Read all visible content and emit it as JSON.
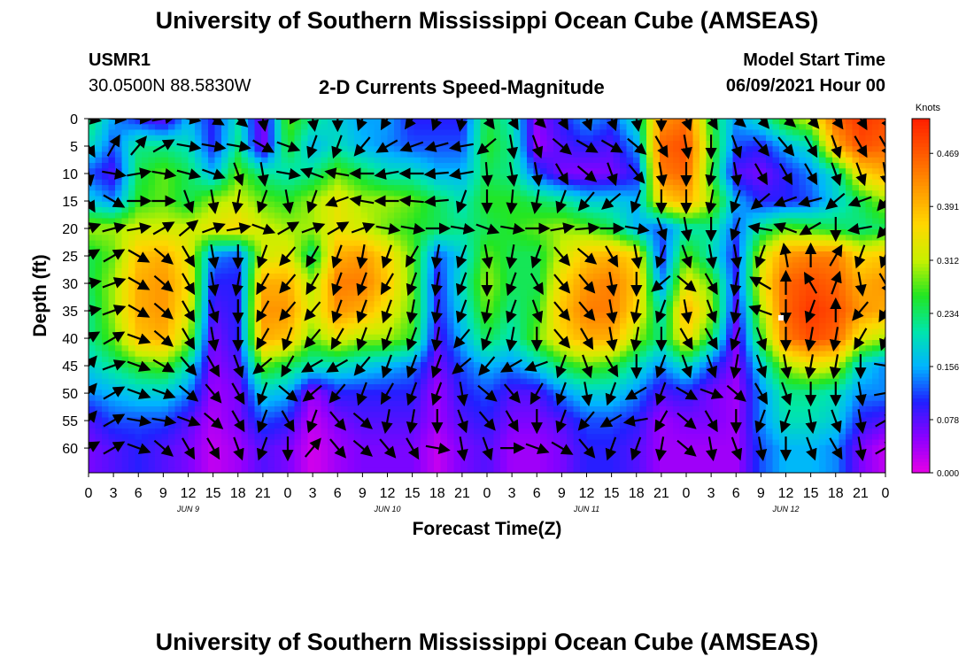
{
  "header": {
    "title": "University of Southern Mississippi Ocean Cube (AMSEAS)",
    "station": "USMR1",
    "coords": "30.0500N  88.5830W",
    "chart_title": "2-D Currents Speed-Magnitude",
    "model_start_label": "Model Start Time",
    "model_start_value": "06/09/2021 Hour 00"
  },
  "footer": {
    "title": "University of Southern Mississippi Ocean Cube (AMSEAS)"
  },
  "chart_data": {
    "type": "heatmap",
    "title": "2-D Currents Speed-Magnitude",
    "xlabel": "Forecast Time(Z)",
    "ylabel": "Depth (ft)",
    "x_tick_labels": [
      "0",
      "3",
      "6",
      "9",
      "12",
      "15",
      "18",
      "21",
      "0",
      "3",
      "6",
      "9",
      "12",
      "15",
      "18",
      "21",
      "0",
      "3",
      "6",
      "9",
      "12",
      "15",
      "18",
      "21",
      "0",
      "3",
      "6",
      "9",
      "12",
      "15",
      "18",
      "21",
      "0"
    ],
    "x_range_hours": [
      0,
      96
    ],
    "day_labels": [
      {
        "label": "JUN 9",
        "hour": 12
      },
      {
        "label": "JUN 10",
        "hour": 36
      },
      {
        "label": "JUN 11",
        "hour": 60
      },
      {
        "label": "JUN 12",
        "hour": 84
      }
    ],
    "y_ticks": [
      0,
      5,
      10,
      15,
      20,
      25,
      30,
      35,
      40,
      45,
      50,
      55,
      60
    ],
    "y_range_ft": [
      0,
      64.5
    ],
    "y_inverted": true,
    "colorbar": {
      "unit": "Knots",
      "ticks": [
        "0.000",
        "0.078",
        "0.156",
        "0.234",
        "0.312",
        "0.391",
        "0.469"
      ],
      "range": [
        0,
        0.52
      ],
      "colors": [
        "#e600e6",
        "#8a00ff",
        "#2020ff",
        "#00b4ff",
        "#00e6aa",
        "#22e622",
        "#c8f000",
        "#ffd700",
        "#ff9a00",
        "#ff5a00",
        "#ff1e00"
      ]
    },
    "hours": [
      0,
      3,
      6,
      9,
      12,
      15,
      18,
      21,
      24,
      27,
      30,
      33,
      36,
      39,
      42,
      45,
      48,
      51,
      54,
      57,
      60,
      63,
      66,
      69,
      72,
      75,
      78,
      81,
      84,
      87,
      90,
      93,
      96
    ],
    "depths_ft": [
      0,
      5,
      10,
      15,
      20,
      25,
      30,
      35,
      40,
      45,
      50,
      55,
      60,
      64
    ],
    "speed_knots": [
      [
        0.24,
        0.15,
        0.1,
        0.06,
        0.16,
        0.1,
        0.2,
        0.05,
        0.28,
        0.22,
        0.18,
        0.15,
        0.15,
        0.1,
        0.1,
        0.1,
        0.25,
        0.2,
        0.05,
        0.1,
        0.15,
        0.12,
        0.2,
        0.42,
        0.45,
        0.25,
        0.15,
        0.2,
        0.28,
        0.32,
        0.46,
        0.5,
        0.48
      ],
      [
        0.2,
        0.12,
        0.22,
        0.22,
        0.2,
        0.1,
        0.22,
        0.05,
        0.26,
        0.16,
        0.2,
        0.16,
        0.14,
        0.12,
        0.12,
        0.12,
        0.26,
        0.22,
        0.04,
        0.08,
        0.1,
        0.08,
        0.15,
        0.46,
        0.48,
        0.28,
        0.12,
        0.1,
        0.16,
        0.2,
        0.4,
        0.48,
        0.46
      ],
      [
        0.12,
        0.08,
        0.24,
        0.28,
        0.24,
        0.16,
        0.28,
        0.22,
        0.2,
        0.22,
        0.28,
        0.24,
        0.2,
        0.2,
        0.16,
        0.16,
        0.24,
        0.22,
        0.12,
        0.06,
        0.05,
        0.06,
        0.1,
        0.44,
        0.46,
        0.26,
        0.08,
        0.06,
        0.1,
        0.14,
        0.2,
        0.36,
        0.4
      ],
      [
        0.18,
        0.14,
        0.26,
        0.28,
        0.24,
        0.3,
        0.32,
        0.28,
        0.26,
        0.3,
        0.34,
        0.3,
        0.3,
        0.28,
        0.24,
        0.2,
        0.26,
        0.26,
        0.24,
        0.22,
        0.18,
        0.18,
        0.16,
        0.36,
        0.4,
        0.3,
        0.16,
        0.1,
        0.1,
        0.12,
        0.18,
        0.24,
        0.3
      ],
      [
        0.3,
        0.3,
        0.32,
        0.32,
        0.32,
        0.34,
        0.36,
        0.32,
        0.3,
        0.3,
        0.34,
        0.32,
        0.28,
        0.26,
        0.24,
        0.22,
        0.24,
        0.26,
        0.28,
        0.3,
        0.28,
        0.24,
        0.16,
        0.12,
        0.2,
        0.22,
        0.12,
        0.22,
        0.28,
        0.26,
        0.24,
        0.22,
        0.24
      ],
      [
        0.24,
        0.28,
        0.38,
        0.4,
        0.34,
        0.14,
        0.12,
        0.32,
        0.34,
        0.22,
        0.4,
        0.42,
        0.36,
        0.28,
        0.12,
        0.18,
        0.28,
        0.24,
        0.24,
        0.32,
        0.38,
        0.4,
        0.36,
        0.1,
        0.28,
        0.2,
        0.1,
        0.32,
        0.42,
        0.44,
        0.44,
        0.36,
        0.38
      ],
      [
        0.24,
        0.3,
        0.4,
        0.42,
        0.36,
        0.1,
        0.1,
        0.4,
        0.4,
        0.3,
        0.44,
        0.44,
        0.38,
        0.28,
        0.1,
        0.2,
        0.3,
        0.24,
        0.24,
        0.36,
        0.42,
        0.44,
        0.38,
        0.14,
        0.34,
        0.28,
        0.1,
        0.34,
        0.46,
        0.48,
        0.46,
        0.4,
        0.42
      ],
      [
        0.22,
        0.3,
        0.4,
        0.42,
        0.34,
        0.08,
        0.1,
        0.42,
        0.42,
        0.32,
        0.42,
        0.4,
        0.34,
        0.28,
        0.1,
        0.18,
        0.28,
        0.22,
        0.26,
        0.38,
        0.44,
        0.44,
        0.36,
        0.2,
        0.4,
        0.3,
        0.08,
        0.3,
        0.46,
        0.5,
        0.48,
        0.42,
        0.4
      ],
      [
        0.22,
        0.28,
        0.38,
        0.4,
        0.3,
        0.06,
        0.1,
        0.4,
        0.38,
        0.28,
        0.34,
        0.3,
        0.3,
        0.26,
        0.08,
        0.16,
        0.24,
        0.2,
        0.28,
        0.36,
        0.4,
        0.4,
        0.3,
        0.22,
        0.36,
        0.24,
        0.06,
        0.26,
        0.44,
        0.48,
        0.46,
        0.34,
        0.3
      ],
      [
        0.18,
        0.22,
        0.26,
        0.28,
        0.2,
        0.05,
        0.08,
        0.28,
        0.24,
        0.2,
        0.2,
        0.18,
        0.16,
        0.14,
        0.06,
        0.12,
        0.16,
        0.14,
        0.18,
        0.24,
        0.28,
        0.26,
        0.2,
        0.14,
        0.2,
        0.12,
        0.05,
        0.18,
        0.3,
        0.34,
        0.32,
        0.18,
        0.14
      ],
      [
        0.14,
        0.16,
        0.18,
        0.18,
        0.14,
        0.04,
        0.06,
        0.18,
        0.16,
        0.04,
        0.1,
        0.1,
        0.1,
        0.1,
        0.04,
        0.1,
        0.12,
        0.08,
        0.08,
        0.14,
        0.18,
        0.18,
        0.14,
        0.08,
        0.1,
        0.06,
        0.04,
        0.14,
        0.22,
        0.22,
        0.2,
        0.14,
        0.14
      ],
      [
        0.08,
        0.12,
        0.12,
        0.12,
        0.08,
        0.03,
        0.06,
        0.12,
        0.1,
        0.02,
        0.06,
        0.08,
        0.08,
        0.08,
        0.04,
        0.08,
        0.1,
        0.06,
        0.06,
        0.08,
        0.12,
        0.12,
        0.1,
        0.04,
        0.06,
        0.06,
        0.04,
        0.14,
        0.2,
        0.2,
        0.18,
        0.1,
        0.08
      ],
      [
        0.06,
        0.08,
        0.1,
        0.08,
        0.06,
        0.02,
        0.04,
        0.08,
        0.06,
        0.01,
        0.04,
        0.06,
        0.06,
        0.06,
        0.02,
        0.06,
        0.08,
        0.04,
        0.04,
        0.06,
        0.1,
        0.1,
        0.08,
        0.04,
        0.04,
        0.04,
        0.04,
        0.12,
        0.16,
        0.16,
        0.14,
        0.06,
        0.02
      ],
      [
        0.06,
        0.08,
        0.1,
        0.08,
        0.06,
        0.02,
        0.04,
        0.08,
        0.06,
        0.01,
        0.04,
        0.06,
        0.06,
        0.06,
        0.02,
        0.06,
        0.08,
        0.04,
        0.04,
        0.06,
        0.1,
        0.1,
        0.08,
        0.04,
        0.04,
        0.04,
        0.04,
        0.12,
        0.16,
        0.16,
        0.14,
        0.06,
        0.02
      ]
    ],
    "direction_deg": [
      [
        100,
        95,
        95,
        80,
        100,
        120,
        130,
        170,
        90,
        170,
        180,
        200,
        210,
        215,
        200,
        190,
        145,
        150,
        135,
        150,
        160,
        160,
        170,
        180,
        160,
        150,
        130,
        140,
        130,
        140,
        145,
        150,
        150
      ],
      [
        150,
        30,
        40,
        60,
        100,
        100,
        100,
        120,
        110,
        200,
        200,
        220,
        240,
        250,
        255,
        260,
        230,
        170,
        160,
        130,
        120,
        120,
        130,
        150,
        170,
        180,
        160,
        140,
        140,
        150,
        160,
        150,
        150
      ],
      [
        170,
        100,
        80,
        100,
        105,
        110,
        160,
        170,
        100,
        290,
        280,
        270,
        260,
        270,
        265,
        260,
        175,
        170,
        170,
        150,
        130,
        160,
        140,
        170,
        180,
        190,
        170,
        150,
        150,
        150,
        160,
        160,
        170
      ],
      [
        150,
        120,
        90,
        90,
        160,
        170,
        190,
        200,
        170,
        200,
        250,
        280,
        270,
        275,
        265,
        200,
        180,
        185,
        190,
        200,
        220,
        230,
        200,
        180,
        180,
        190,
        200,
        230,
        250,
        255,
        230,
        250,
        220
      ],
      [
        70,
        75,
        80,
        60,
        50,
        70,
        80,
        110,
        60,
        70,
        60,
        70,
        100,
        100,
        90,
        100,
        110,
        100,
        90,
        80,
        85,
        90,
        100,
        160,
        170,
        180,
        200,
        280,
        290,
        240,
        180,
        260,
        220
      ],
      [
        60,
        60,
        120,
        130,
        150,
        170,
        180,
        200,
        220,
        210,
        200,
        190,
        200,
        210,
        190,
        200,
        170,
        190,
        200,
        140,
        130,
        150,
        170,
        200,
        160,
        170,
        170,
        200,
        350,
        0,
        30,
        200,
        200
      ],
      [
        80,
        70,
        120,
        130,
        150,
        170,
        190,
        210,
        220,
        210,
        200,
        200,
        210,
        200,
        190,
        200,
        180,
        200,
        150,
        140,
        140,
        170,
        180,
        230,
        130,
        150,
        190,
        300,
        0,
        330,
        20,
        170,
        150
      ],
      [
        80,
        70,
        120,
        130,
        150,
        160,
        180,
        210,
        220,
        220,
        200,
        200,
        200,
        190,
        190,
        200,
        190,
        200,
        160,
        140,
        140,
        170,
        190,
        200,
        170,
        160,
        190,
        290,
        180,
        200,
        0,
        220,
        210
      ],
      [
        60,
        60,
        110,
        130,
        150,
        170,
        180,
        210,
        200,
        220,
        210,
        200,
        200,
        200,
        190,
        220,
        200,
        190,
        180,
        140,
        150,
        170,
        190,
        180,
        150,
        150,
        200,
        160,
        180,
        190,
        190,
        210,
        200
      ],
      [
        40,
        70,
        110,
        120,
        140,
        150,
        160,
        230,
        210,
        240,
        240,
        220,
        200,
        200,
        200,
        230,
        220,
        240,
        250,
        200,
        160,
        150,
        180,
        200,
        160,
        160,
        190,
        160,
        170,
        190,
        190,
        180,
        100
      ],
      [
        40,
        60,
        110,
        110,
        130,
        140,
        150,
        200,
        130,
        230,
        220,
        200,
        210,
        200,
        200,
        170,
        130,
        140,
        210,
        200,
        170,
        200,
        240,
        200,
        120,
        110,
        130,
        150,
        160,
        180,
        180,
        170,
        80
      ],
      [
        40,
        60,
        100,
        100,
        110,
        130,
        150,
        200,
        150,
        200,
        140,
        130,
        190,
        190,
        180,
        160,
        140,
        150,
        180,
        200,
        220,
        240,
        260,
        210,
        130,
        150,
        180,
        200,
        200,
        170,
        160,
        170,
        60
      ],
      [
        60,
        60,
        110,
        130,
        150,
        150,
        160,
        200,
        180,
        40,
        140,
        130,
        140,
        150,
        100,
        170,
        160,
        90,
        110,
        120,
        140,
        200,
        200,
        190,
        130,
        170,
        160,
        170,
        180,
        160,
        150,
        170,
        60
      ],
      [
        60,
        60,
        110,
        130,
        150,
        150,
        160,
        200,
        180,
        40,
        140,
        130,
        140,
        150,
        100,
        170,
        160,
        90,
        110,
        120,
        140,
        200,
        200,
        190,
        130,
        170,
        160,
        170,
        180,
        160,
        150,
        170,
        60
      ]
    ]
  }
}
